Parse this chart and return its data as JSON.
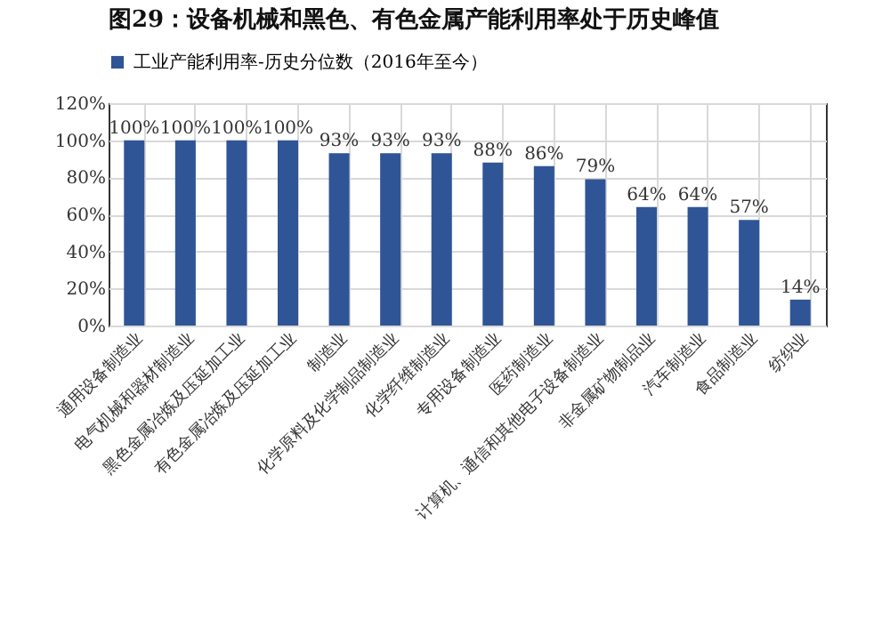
{
  "chart_data": {
    "type": "bar",
    "title": "图29：设备机械和黑色、有色金属产能利用率处于历史峰值",
    "categories": [
      "通用设备制造业",
      "电气机械和器材制造业",
      "黑色金属冶炼及压延加工业",
      "有色金属冶炼及压延加工业",
      "制造业",
      "化学原料及化学制品制造业",
      "化学纤维制造业",
      "专用设备制造业",
      "医药制造业",
      "计算机、通信和其他电子设备制造业",
      "非金属矿物制品业",
      "汽车制造业",
      "食品制造业",
      "纺织业"
    ],
    "series": [
      {
        "name": "工业产能利用率-历史分位数（2016年至今）",
        "color": "#2f5597",
        "values": [
          100,
          100,
          100,
          100,
          93,
          93,
          93,
          88,
          86,
          79,
          64,
          64,
          57,
          14
        ],
        "value_labels": [
          "100%",
          "100%",
          "100%",
          "100%",
          "93%",
          "93%",
          "93%",
          "88%",
          "86%",
          "79%",
          "64%",
          "64%",
          "57%",
          "14%"
        ]
      }
    ],
    "ylim": [
      0,
      120
    ],
    "yticks": [
      {
        "value": 0,
        "label": "0%"
      },
      {
        "value": 20,
        "label": "20%"
      },
      {
        "value": 40,
        "label": "40%"
      },
      {
        "value": 60,
        "label": "60%"
      },
      {
        "value": 80,
        "label": "80%"
      },
      {
        "value": 100,
        "label": "100%"
      },
      {
        "value": 120,
        "label": "120%"
      }
    ],
    "grid": true,
    "legend": "top"
  }
}
